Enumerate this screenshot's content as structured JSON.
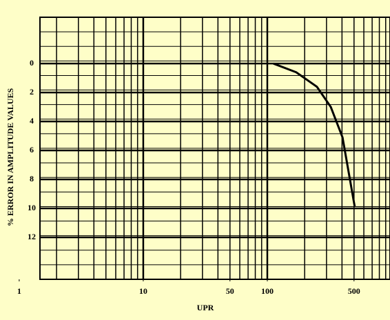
{
  "chart_data": {
    "type": "line",
    "x_label": "UPR",
    "y_label": "% ERROR IN AMPLITUDE VALUES",
    "log_x": true,
    "y_inverted": true,
    "grid": true,
    "xlim": [
      1.47,
      975
    ],
    "ylim": [
      -3.2,
      14.9
    ],
    "xticks": [
      1,
      10,
      50,
      100,
      500
    ],
    "yticks": [
      0,
      2,
      4,
      6,
      8,
      10,
      12
    ],
    "x": [
      112,
      171,
      251,
      325,
      404,
      507
    ],
    "series": [
      {
        "color": "#000000",
        "values": [
          0,
          0.6,
          1.6,
          3.0,
          5.1,
          9.9
        ]
      }
    ]
  }
}
